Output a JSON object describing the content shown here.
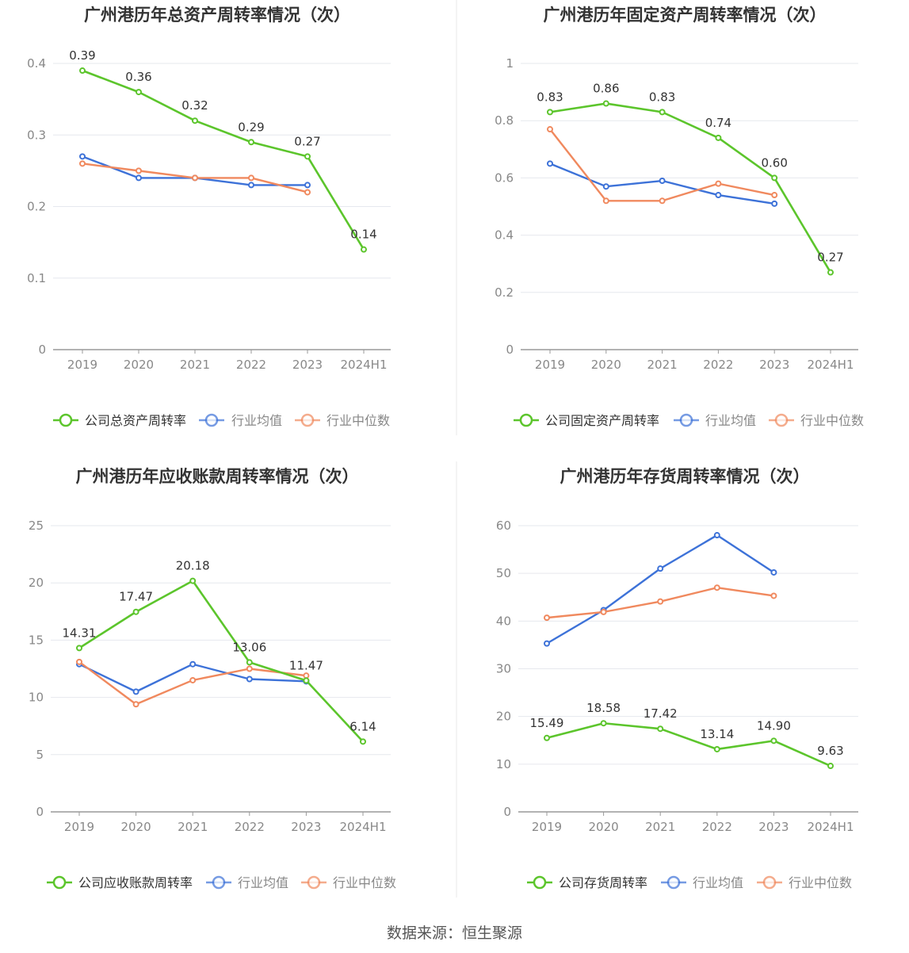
{
  "source_text": "数据来源：恒生聚源",
  "colors": {
    "company": "#5cc52c",
    "avg": "#3d72d8",
    "median": "#f0895e",
    "axis": "#999999",
    "grid": "#e6e8ee",
    "title": "#333333",
    "label": "#333333",
    "tick": "#888888"
  },
  "chart_data": [
    {
      "type": "line",
      "title": "广州港历年总资产周转率情况（次）",
      "categories": [
        "2019",
        "2020",
        "2021",
        "2022",
        "2023",
        "2024H1"
      ],
      "yticks": [
        "0",
        "0.1",
        "0.2",
        "0.3",
        "0.4"
      ],
      "ylim": [
        0,
        0.4
      ],
      "grid": true,
      "legend_position": "bottom",
      "series": [
        {
          "name": "公司总资产周转率",
          "role": "company",
          "values": [
            0.39,
            0.36,
            0.32,
            0.29,
            0.27,
            0.14
          ],
          "labels": [
            "0.39",
            "0.36",
            "0.32",
            "0.29",
            "0.27",
            "0.14"
          ]
        },
        {
          "name": "行业均值",
          "role": "avg",
          "values": [
            0.27,
            0.24,
            0.24,
            0.23,
            0.23,
            null
          ]
        },
        {
          "name": "行业中位数",
          "role": "median",
          "values": [
            0.26,
            0.25,
            0.24,
            0.24,
            0.22,
            null
          ]
        }
      ]
    },
    {
      "type": "line",
      "title": "广州港历年固定资产周转率情况（次）",
      "categories": [
        "2019",
        "2020",
        "2021",
        "2022",
        "2023",
        "2024H1"
      ],
      "yticks": [
        "0",
        "0.2",
        "0.4",
        "0.6",
        "0.8",
        "1"
      ],
      "ylim": [
        0,
        1
      ],
      "grid": true,
      "legend_position": "bottom",
      "series": [
        {
          "name": "公司固定资产周转率",
          "role": "company",
          "values": [
            0.83,
            0.86,
            0.83,
            0.74,
            0.6,
            0.27
          ],
          "labels": [
            "0.83",
            "0.86",
            "0.83",
            "0.74",
            "0.60",
            "0.27"
          ]
        },
        {
          "name": "行业均值",
          "role": "avg",
          "values": [
            0.65,
            0.57,
            0.59,
            0.54,
            0.51,
            null
          ]
        },
        {
          "name": "行业中位数",
          "role": "median",
          "values": [
            0.77,
            0.52,
            0.52,
            0.58,
            0.54,
            null
          ]
        }
      ]
    },
    {
      "type": "line",
      "title": "广州港历年应收账款周转率情况（次）",
      "categories": [
        "2019",
        "2020",
        "2021",
        "2022",
        "2023",
        "2024H1"
      ],
      "yticks": [
        "0",
        "5",
        "10",
        "15",
        "20",
        "25"
      ],
      "ylim": [
        0,
        25
      ],
      "grid": true,
      "legend_position": "bottom",
      "series": [
        {
          "name": "公司应收账款周转率",
          "role": "company",
          "values": [
            14.31,
            17.47,
            20.18,
            13.06,
            11.47,
            6.14
          ],
          "labels": [
            "14.31",
            "17.47",
            "20.18",
            "13.06",
            "11.47",
            "6.14"
          ]
        },
        {
          "name": "行业均值",
          "role": "avg",
          "values": [
            12.9,
            10.5,
            12.9,
            11.6,
            11.4,
            null
          ]
        },
        {
          "name": "行业中位数",
          "role": "median",
          "values": [
            13.1,
            9.4,
            11.5,
            12.5,
            11.9,
            null
          ]
        }
      ]
    },
    {
      "type": "line",
      "title": "广州港历年存货周转率情况（次）",
      "categories": [
        "2019",
        "2020",
        "2021",
        "2022",
        "2023",
        "2024H1"
      ],
      "yticks": [
        "0",
        "10",
        "20",
        "30",
        "40",
        "50",
        "60"
      ],
      "ylim": [
        0,
        60
      ],
      "grid": true,
      "legend_position": "bottom",
      "series": [
        {
          "name": "公司存货周转率",
          "role": "company",
          "values": [
            15.49,
            18.58,
            17.42,
            13.14,
            14.9,
            9.63
          ],
          "labels": [
            "15.49",
            "18.58",
            "17.42",
            "13.14",
            "14.90",
            "9.63"
          ]
        },
        {
          "name": "行业均值",
          "role": "avg",
          "values": [
            35.3,
            42.3,
            51.0,
            58.0,
            50.2,
            null
          ]
        },
        {
          "name": "行业中位数",
          "role": "median",
          "values": [
            40.7,
            41.9,
            44.1,
            47.0,
            45.3,
            null
          ]
        }
      ]
    }
  ]
}
